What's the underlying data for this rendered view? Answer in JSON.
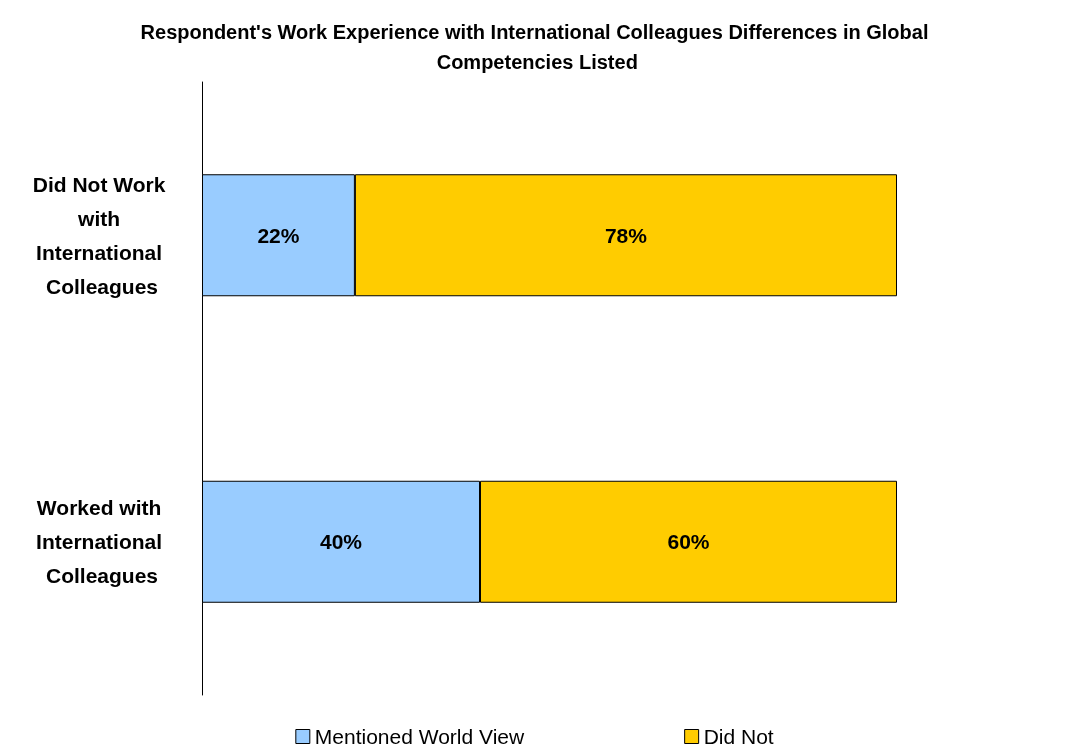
{
  "chart_data": {
    "type": "bar",
    "title": "Respondent's Work Experience with International Colleagues Differences in Global Competencies Listed",
    "orientation": "horizontal",
    "stacked": true,
    "categories": [
      "Did Not Work with International Colleagues",
      "Worked with International Colleagues"
    ],
    "series": [
      {
        "name": "Mentioned World View",
        "color": "#99ccff",
        "values": [
          22,
          40
        ],
        "value_labels": [
          "22%",
          "40%"
        ]
      },
      {
        "name": "Did Not",
        "color": "#ffcc00",
        "values": [
          78,
          60
        ],
        "value_labels": [
          "78%",
          "60%"
        ]
      }
    ],
    "legend": "bottom",
    "grid": false
  }
}
